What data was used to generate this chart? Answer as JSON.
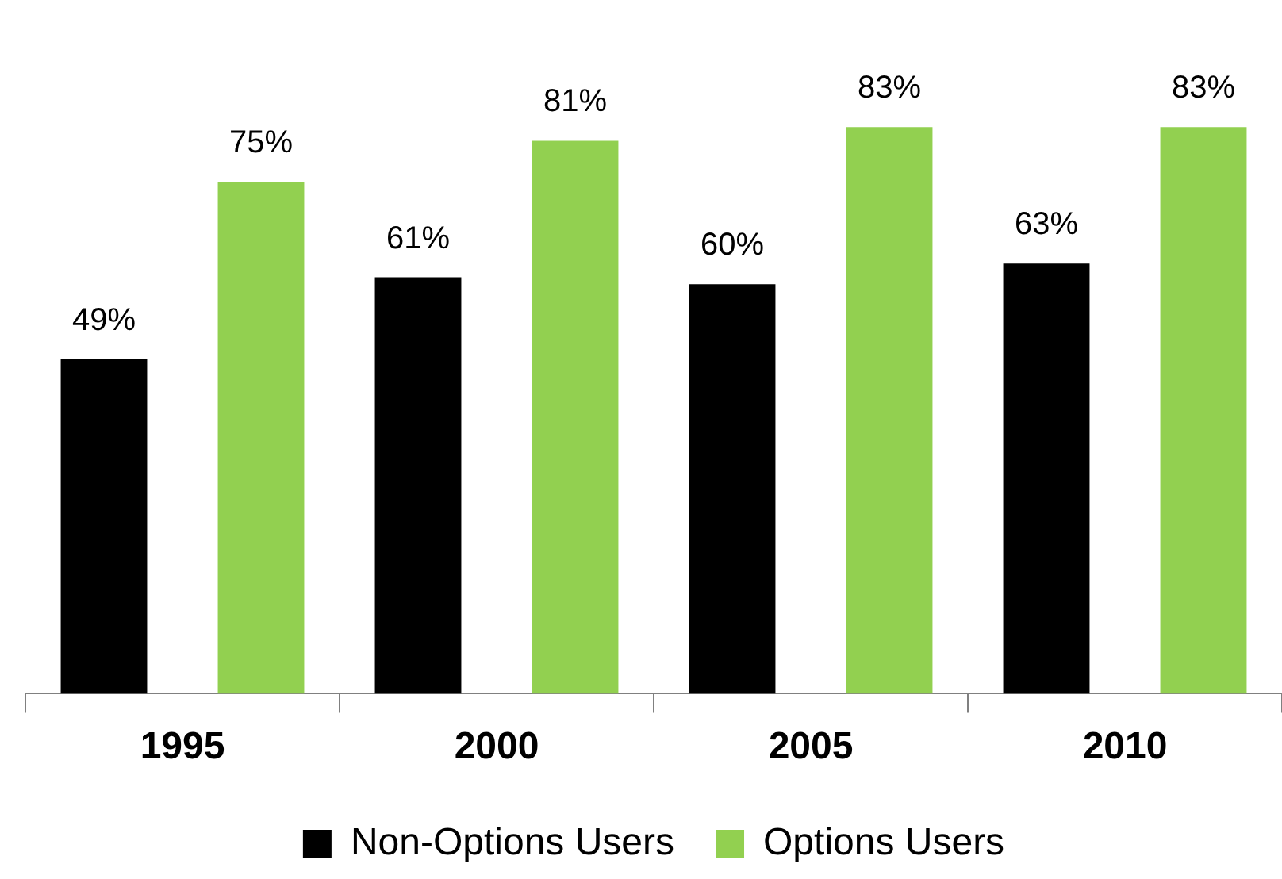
{
  "chart_data": {
    "type": "bar",
    "categories": [
      "1995",
      "2000",
      "2005",
      "2010"
    ],
    "series": [
      {
        "name": "Non-Options Users",
        "color": "#000000",
        "values": [
          49,
          61,
          60,
          63
        ],
        "value_labels": [
          "49%",
          "61%",
          "60%",
          "63%"
        ]
      },
      {
        "name": "Options Users",
        "color": "#92d050",
        "values": [
          75,
          81,
          83,
          83
        ],
        "value_labels": [
          "75%",
          "81%",
          "83%",
          "83%"
        ]
      }
    ],
    "legend": "bottom",
    "grid": false
  }
}
